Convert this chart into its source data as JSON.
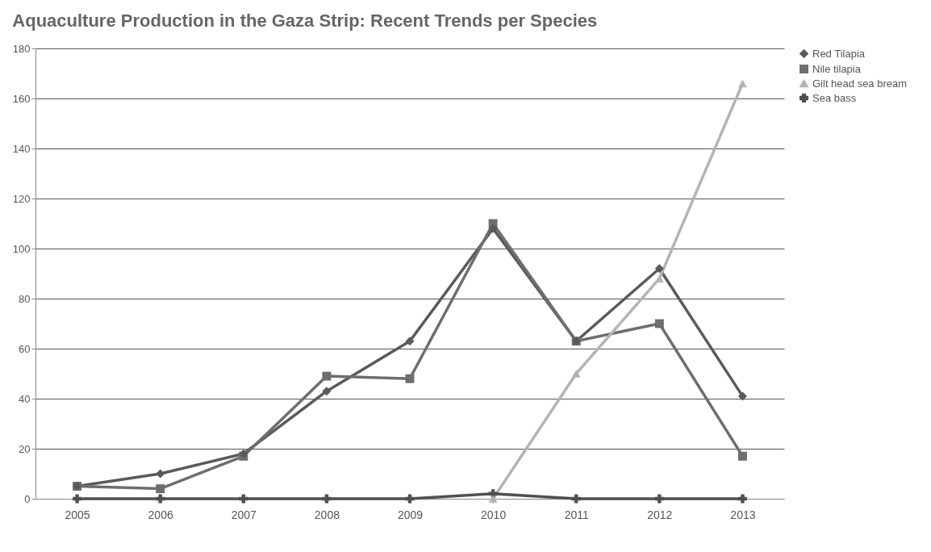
{
  "chart_data": {
    "type": "line",
    "title": "Aquaculture Production in the Gaza Strip:  Recent Trends per Species",
    "categories": [
      "2005",
      "2006",
      "2007",
      "2008",
      "2009",
      "2010",
      "2011",
      "2012",
      "2013"
    ],
    "series": [
      {
        "name": "Red Tilapia",
        "color": "#5a5a5a",
        "marker": "diamond",
        "values": [
          5,
          10,
          18,
          43,
          63,
          108,
          63,
          92,
          41
        ]
      },
      {
        "name": "Nile tilapia",
        "color": "#6e6e6e",
        "marker": "square",
        "values": [
          5,
          4,
          17,
          49,
          48,
          110,
          63,
          70,
          17
        ]
      },
      {
        "name": "Gilt head sea bream",
        "color": "#b4b4b4",
        "marker": "triangle",
        "values": [
          null,
          null,
          null,
          null,
          null,
          0,
          50,
          88,
          166
        ]
      },
      {
        "name": "Sea bass",
        "color": "#505050",
        "marker": "cross",
        "values": [
          0,
          0,
          0,
          0,
          0,
          2,
          0,
          0,
          0
        ]
      }
    ],
    "ylim": [
      0,
      180
    ],
    "yticks": [
      0,
      20,
      40,
      60,
      80,
      100,
      120,
      140,
      160,
      180
    ],
    "grid": "y",
    "legend": "right"
  }
}
